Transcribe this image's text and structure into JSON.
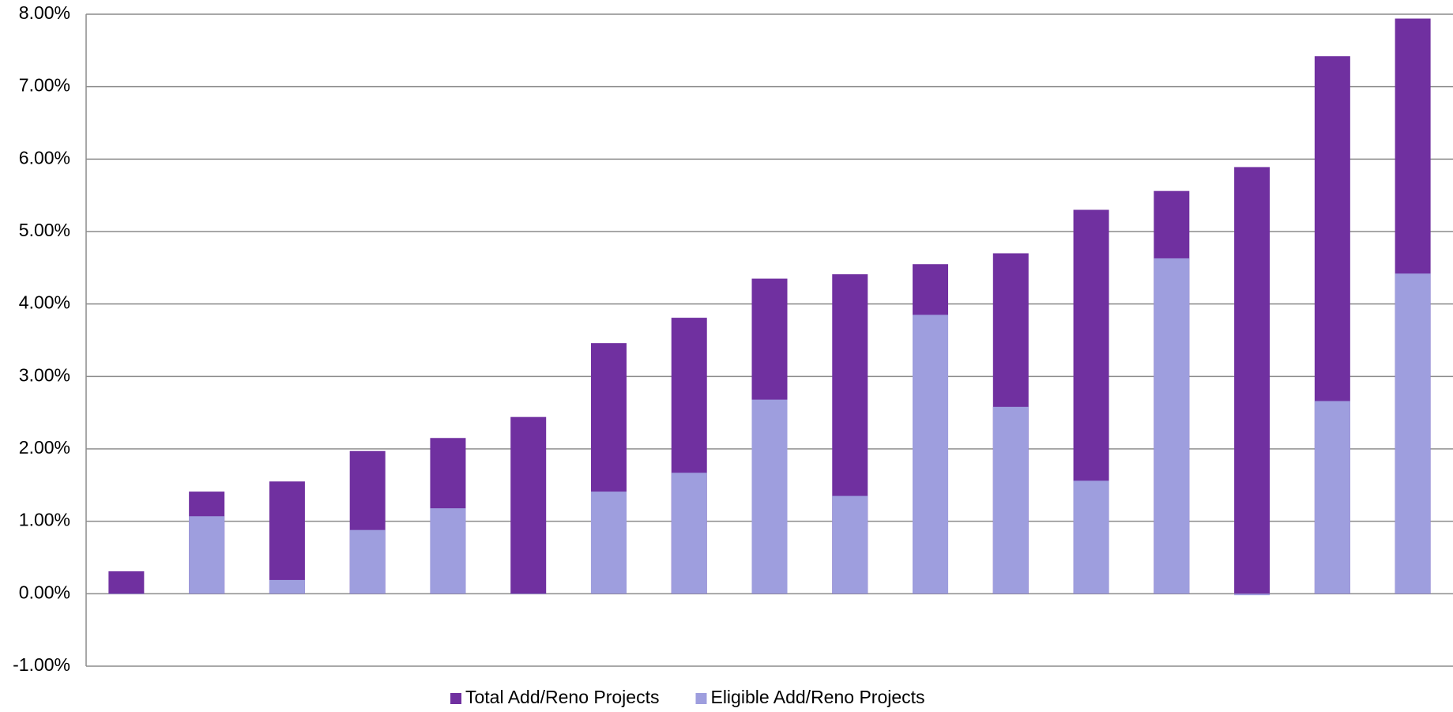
{
  "chart_data": {
    "type": "bar",
    "overlap": true,
    "categories": [
      null,
      null,
      null,
      null,
      null,
      null,
      null,
      null,
      null,
      null,
      null,
      null,
      null,
      null,
      null,
      null,
      null
    ],
    "series": [
      {
        "name": "Total Add/Reno Projects",
        "color": "#7030a0",
        "values": [
          0.31,
          1.41,
          1.55,
          1.97,
          2.15,
          2.44,
          3.46,
          3.81,
          4.35,
          4.41,
          4.55,
          4.7,
          5.3,
          5.56,
          5.89,
          7.42,
          7.94
        ]
      },
      {
        "name": "Eligible Add/Reno Projects",
        "color": "#9e9ede",
        "values": [
          0,
          1.07,
          0.19,
          0.88,
          1.18,
          0,
          1.41,
          1.67,
          2.68,
          1.35,
          3.85,
          2.58,
          1.56,
          4.63,
          -0.02,
          2.66,
          4.42
        ]
      }
    ],
    "ylim": [
      -1,
      8
    ],
    "yticks": [
      {
        "value": -1,
        "label": "-1.00%"
      },
      {
        "value": 0,
        "label": "0.00%"
      },
      {
        "value": 1,
        "label": "1.00%"
      },
      {
        "value": 2,
        "label": "2.00%"
      },
      {
        "value": 3,
        "label": "3.00%"
      },
      {
        "value": 4,
        "label": "4.00%"
      },
      {
        "value": 5,
        "label": "5.00%"
      },
      {
        "value": 6,
        "label": "6.00%"
      },
      {
        "value": 7,
        "label": "7.00%"
      },
      {
        "value": 8,
        "label": "8.00%"
      }
    ],
    "grid": true,
    "legend": "bottom"
  }
}
